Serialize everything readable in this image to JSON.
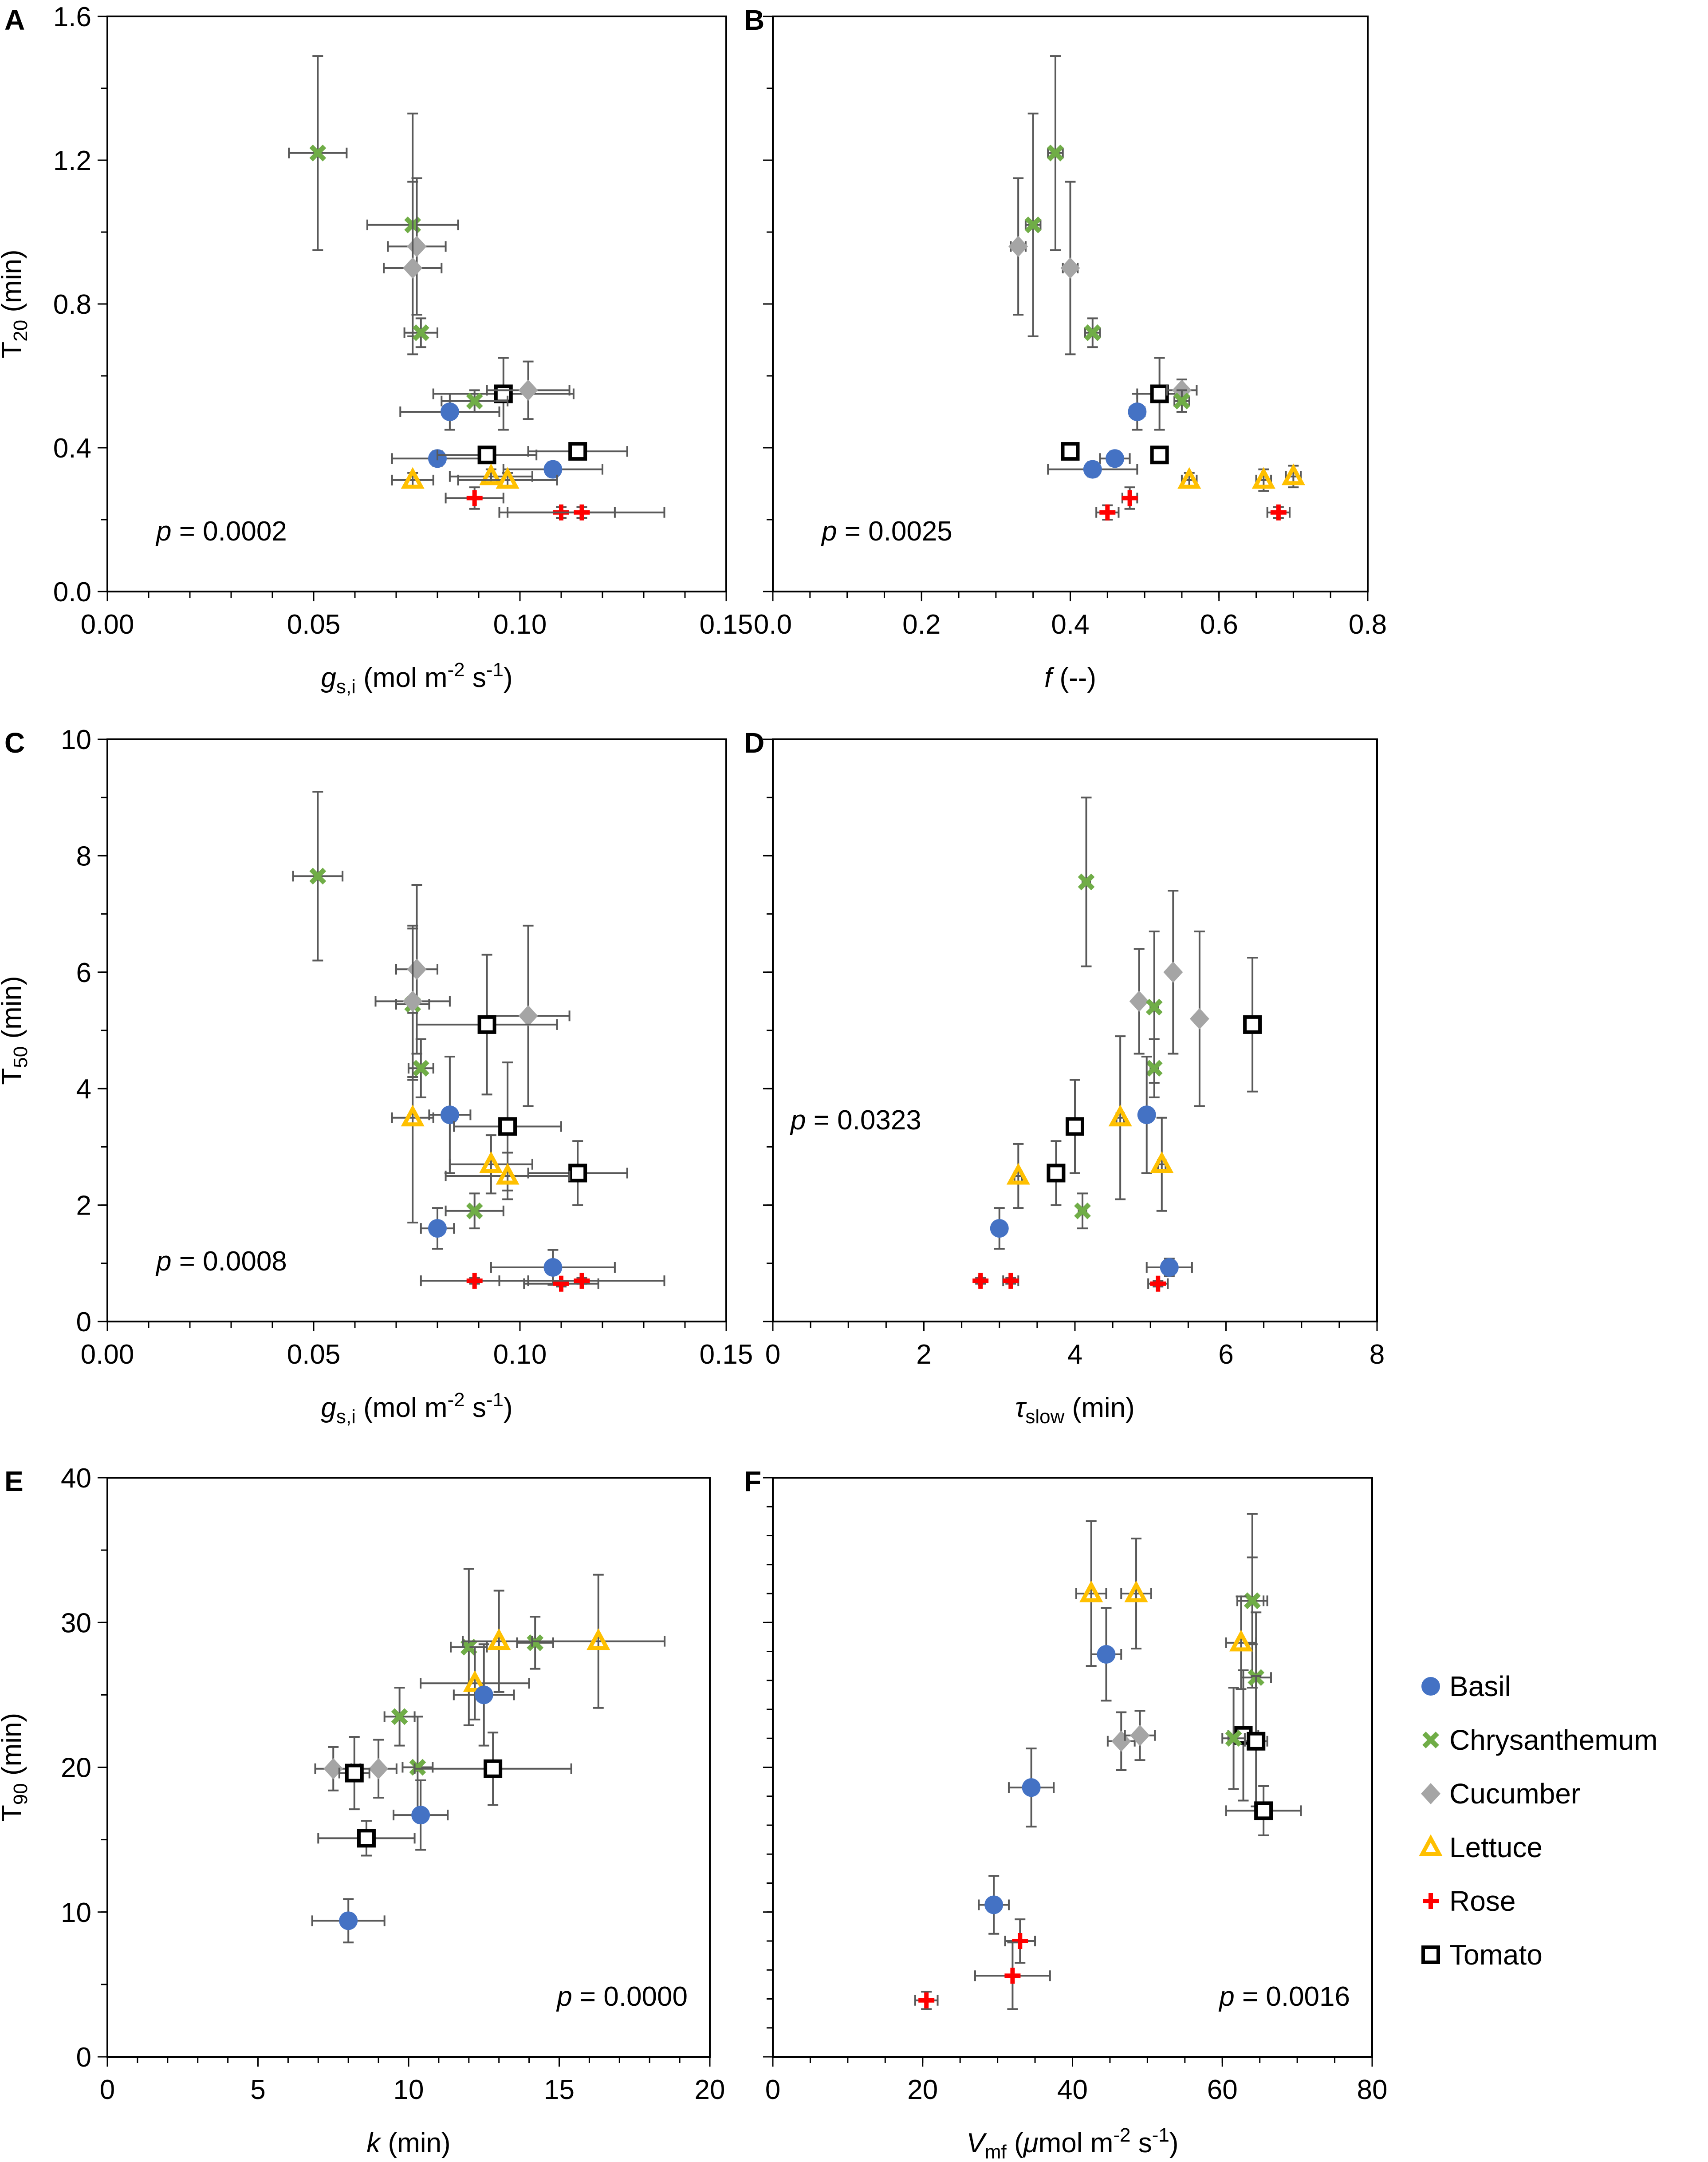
{
  "colors": {
    "Basil": "#4472C4",
    "Chrysanthemum": "#70AD47",
    "Cucumber": "#A5A5A5",
    "Lettuce": "#FFC000",
    "Rose": "#FF0000",
    "Tomato": "#000000",
    "errorbar": "#595959"
  },
  "legend": {
    "items": [
      {
        "name": "Basil",
        "marker": "circle"
      },
      {
        "name": "Chrysanthemum",
        "marker": "x"
      },
      {
        "name": "Cucumber",
        "marker": "diamond"
      },
      {
        "name": "Lettuce",
        "marker": "triangle"
      },
      {
        "name": "Rose",
        "marker": "plus"
      },
      {
        "name": "Tomato",
        "marker": "square"
      }
    ]
  },
  "chart_data": [
    {
      "id": "A",
      "type": "scatter",
      "letter": "A",
      "ylabel": "T",
      "ylabel_sub": "20",
      "ylabel_unit": " (min)",
      "xlabel": "g",
      "xlabel_sub": "s,i",
      "xlabel_unit": " (mol m",
      "xlabel_sup1": "-2",
      "xlabel_mid": " s",
      "xlabel_sup2": "-1",
      "xlabel_end": ")",
      "xlim": [
        0,
        0.15
      ],
      "ylim": [
        0,
        1.6
      ],
      "xticks": [
        "0.00",
        "0.05",
        "0.10",
        "0.15"
      ],
      "yticks": [
        "0.0",
        "0.4",
        "0.8",
        "1.2",
        "1.6"
      ],
      "show_xlabels": true,
      "show_ylabels": true,
      "xminor": 0.01,
      "yminor": 0.2,
      "pvalue": "p = 0.0002",
      "pvalue_pos": "bottom-left",
      "points": [
        {
          "s": "Chrysanthemum",
          "x": 0.051,
          "y": 1.22,
          "xe": 0.007,
          "ye": 0.27
        },
        {
          "s": "Chrysanthemum",
          "x": 0.074,
          "y": 1.02,
          "xe": 0.011,
          "ye": 0.31
        },
        {
          "s": "Cucumber",
          "x": 0.075,
          "y": 0.96,
          "xe": 0.007,
          "ye": 0.19
        },
        {
          "s": "Cucumber",
          "x": 0.074,
          "y": 0.9,
          "xe": 0.007,
          "ye": 0.24
        },
        {
          "s": "Chrysanthemum",
          "x": 0.076,
          "y": 0.72,
          "xe": 0.004,
          "ye": 0.04
        },
        {
          "s": "Tomato",
          "x": 0.096,
          "y": 0.55,
          "xe": 0.017,
          "ye": 0.1
        },
        {
          "s": "Cucumber",
          "x": 0.102,
          "y": 0.56,
          "xe": 0.01,
          "ye": 0.08
        },
        {
          "s": "Chrysanthemum",
          "x": 0.089,
          "y": 0.53,
          "xe": 0.008,
          "ye": 0.03
        },
        {
          "s": "Basil",
          "x": 0.083,
          "y": 0.5,
          "xe": 0.012,
          "ye": 0.05
        },
        {
          "s": "Basil",
          "x": 0.08,
          "y": 0.37,
          "xe": 0.011,
          "ye": 0.02
        },
        {
          "s": "Tomato",
          "x": 0.092,
          "y": 0.38,
          "xe": 0.012,
          "ye": 0.02
        },
        {
          "s": "Tomato",
          "x": 0.114,
          "y": 0.39,
          "xe": 0.012,
          "ye": 0.02
        },
        {
          "s": "Basil",
          "x": 0.108,
          "y": 0.34,
          "xe": 0.012,
          "ye": 0.02
        },
        {
          "s": "Lettuce",
          "x": 0.074,
          "y": 0.31,
          "xe": 0.005,
          "ye": 0.02
        },
        {
          "s": "Lettuce",
          "x": 0.093,
          "y": 0.32,
          "xe": 0.01,
          "ye": 0.02
        },
        {
          "s": "Lettuce",
          "x": 0.097,
          "y": 0.31,
          "xe": 0.012,
          "ye": 0.02
        },
        {
          "s": "Rose",
          "x": 0.089,
          "y": 0.26,
          "xe": 0.007,
          "ye": 0.03
        },
        {
          "s": "Rose",
          "x": 0.11,
          "y": 0.22,
          "xe": 0.013,
          "ye": 0.015
        },
        {
          "s": "Rose",
          "x": 0.115,
          "y": 0.22,
          "xe": 0.02,
          "ye": 0.015
        }
      ]
    },
    {
      "id": "B",
      "type": "scatter",
      "letter": "B",
      "xlabel": "f",
      "xlabel_unit": " (--)",
      "xlim": [
        0,
        0.8
      ],
      "ylim": [
        0,
        1.6
      ],
      "xticks": [
        "0.0",
        "0.2",
        "0.4",
        "0.6",
        "0.8"
      ],
      "yticks": [
        "0.0",
        "0.4",
        "0.8",
        "1.2",
        "1.6"
      ],
      "show_xlabels": true,
      "show_ylabels": false,
      "xminor": 0.05,
      "yminor": 0.2,
      "pvalue": "p = 0.0025",
      "pvalue_pos": "bottom-left",
      "points": [
        {
          "s": "Chrysanthemum",
          "x": 0.38,
          "y": 1.22,
          "xe": 0.01,
          "ye": 0.27
        },
        {
          "s": "Chrysanthemum",
          "x": 0.35,
          "y": 1.02,
          "xe": 0.01,
          "ye": 0.31
        },
        {
          "s": "Cucumber",
          "x": 0.33,
          "y": 0.96,
          "xe": 0.01,
          "ye": 0.19
        },
        {
          "s": "Cucumber",
          "x": 0.4,
          "y": 0.9,
          "xe": 0.01,
          "ye": 0.24
        },
        {
          "s": "Chrysanthemum",
          "x": 0.43,
          "y": 0.72,
          "xe": 0.01,
          "ye": 0.04
        },
        {
          "s": "Tomato",
          "x": 0.52,
          "y": 0.55,
          "xe": 0.03,
          "ye": 0.1
        },
        {
          "s": "Cucumber",
          "x": 0.55,
          "y": 0.56,
          "xe": 0.02,
          "ye": 0.03
        },
        {
          "s": "Chrysanthemum",
          "x": 0.55,
          "y": 0.53,
          "xe": 0.01,
          "ye": 0.03
        },
        {
          "s": "Basil",
          "x": 0.49,
          "y": 0.5,
          "xe": 0.01,
          "ye": 0.05
        },
        {
          "s": "Tomato",
          "x": 0.4,
          "y": 0.39,
          "xe": 0.01,
          "ye": 0.02
        },
        {
          "s": "Basil",
          "x": 0.46,
          "y": 0.37,
          "xe": 0.02,
          "ye": 0.02
        },
        {
          "s": "Tomato",
          "x": 0.52,
          "y": 0.38,
          "xe": 0.01,
          "ye": 0.02
        },
        {
          "s": "Basil",
          "x": 0.43,
          "y": 0.34,
          "xe": 0.06,
          "ye": 0.02
        },
        {
          "s": "Lettuce",
          "x": 0.56,
          "y": 0.31,
          "xe": 0.01,
          "ye": 0.02
        },
        {
          "s": "Lettuce",
          "x": 0.66,
          "y": 0.31,
          "xe": 0.01,
          "ye": 0.03
        },
        {
          "s": "Lettuce",
          "x": 0.7,
          "y": 0.32,
          "xe": 0.01,
          "ye": 0.03
        },
        {
          "s": "Rose",
          "x": 0.48,
          "y": 0.26,
          "xe": 0.01,
          "ye": 0.03
        },
        {
          "s": "Rose",
          "x": 0.45,
          "y": 0.22,
          "xe": 0.015,
          "ye": 0.02
        },
        {
          "s": "Rose",
          "x": 0.68,
          "y": 0.22,
          "xe": 0.015,
          "ye": 0.015
        }
      ]
    },
    {
      "id": "C",
      "type": "scatter",
      "letter": "C",
      "ylabel": "T",
      "ylabel_sub": "50",
      "ylabel_unit": " (min)",
      "xlabel": "g",
      "xlabel_sub": "s,i",
      "xlabel_unit": " (mol m",
      "xlabel_sup1": "-2",
      "xlabel_mid": " s",
      "xlabel_sup2": "-1",
      "xlabel_end": ")",
      "xlim": [
        0,
        0.15
      ],
      "ylim": [
        0,
        10
      ],
      "xticks": [
        "0.00",
        "0.05",
        "0.10",
        "0.15"
      ],
      "yticks": [
        "0",
        "2",
        "4",
        "6",
        "8",
        "10"
      ],
      "show_xlabels": true,
      "show_ylabels": true,
      "xminor": 0.01,
      "yminor": 1,
      "pvalue": "p = 0.0008",
      "pvalue_pos": "bottom-left",
      "points": [
        {
          "s": "Chrysanthemum",
          "x": 0.051,
          "y": 7.65,
          "xe": 0.006,
          "ye": 1.45
        },
        {
          "s": "Cucumber",
          "x": 0.075,
          "y": 6.05,
          "xe": 0.005,
          "ye": 1.45
        },
        {
          "s": "Chrysanthemum",
          "x": 0.074,
          "y": 5.45,
          "xe": 0.004,
          "ye": 1.3
        },
        {
          "s": "Cucumber",
          "x": 0.074,
          "y": 5.5,
          "xe": 0.009,
          "ye": 1.3
        },
        {
          "s": "Cucumber",
          "x": 0.102,
          "y": 5.25,
          "xe": 0.01,
          "ye": 1.55
        },
        {
          "s": "Tomato",
          "x": 0.092,
          "y": 5.1,
          "xe": 0.017,
          "ye": 1.2
        },
        {
          "s": "Chrysanthemum",
          "x": 0.076,
          "y": 4.35,
          "xe": 0.003,
          "ye": 0.5
        },
        {
          "s": "Basil",
          "x": 0.083,
          "y": 3.55,
          "xe": 0.005,
          "ye": 1.0
        },
        {
          "s": "Lettuce",
          "x": 0.074,
          "y": 3.5,
          "xe": 0.005,
          "ye": 1.8
        },
        {
          "s": "Tomato",
          "x": 0.097,
          "y": 3.35,
          "xe": 0.013,
          "ye": 1.1
        },
        {
          "s": "Lettuce",
          "x": 0.093,
          "y": 2.7,
          "xe": 0.01,
          "ye": 0.5
        },
        {
          "s": "Tomato",
          "x": 0.114,
          "y": 2.55,
          "xe": 0.012,
          "ye": 0.55
        },
        {
          "s": "Lettuce",
          "x": 0.097,
          "y": 2.5,
          "xe": 0.015,
          "ye": 0.4
        },
        {
          "s": "Chrysanthemum",
          "x": 0.089,
          "y": 1.9,
          "xe": 0.007,
          "ye": 0.3
        },
        {
          "s": "Basil",
          "x": 0.08,
          "y": 1.6,
          "xe": 0.004,
          "ye": 0.35
        },
        {
          "s": "Basil",
          "x": 0.108,
          "y": 0.93,
          "xe": 0.015,
          "ye": 0.3
        },
        {
          "s": "Rose",
          "x": 0.089,
          "y": 0.7,
          "xe": 0.013,
          "ye": 0.05
        },
        {
          "s": "Rose",
          "x": 0.11,
          "y": 0.65,
          "xe": 0.009,
          "ye": 0.05
        },
        {
          "s": "Rose",
          "x": 0.115,
          "y": 0.7,
          "xe": 0.02,
          "ye": 0.05
        }
      ]
    },
    {
      "id": "D",
      "type": "scatter",
      "letter": "D",
      "xlabel": "τ",
      "xlabel_sub": "slow",
      "xlabel_unit": " (min)",
      "xlim": [
        0,
        8
      ],
      "ylim": [
        0,
        10
      ],
      "xticks": [
        "0",
        "2",
        "4",
        "6",
        "8"
      ],
      "yticks": [
        "0",
        "2",
        "4",
        "6",
        "8",
        "10"
      ],
      "show_xlabels": true,
      "show_ylabels": false,
      "xminor": 0.5,
      "yminor": 1,
      "pvalue": "p = 0.0323",
      "pvalue_pos": "mid-left",
      "points": [
        {
          "s": "Chrysanthemum",
          "x": 4.15,
          "y": 7.55,
          "xe": 0.05,
          "ye": 1.45
        },
        {
          "s": "Tomato",
          "x": 6.35,
          "y": 5.1,
          "xe": 0.05,
          "ye": 1.15
        },
        {
          "s": "Cucumber",
          "x": 5.3,
          "y": 6.0,
          "xe": 0.05,
          "ye": 1.4
        },
        {
          "s": "Cucumber",
          "x": 4.85,
          "y": 5.5,
          "xe": 0.05,
          "ye": 0.9
        },
        {
          "s": "Chrysanthemum",
          "x": 5.05,
          "y": 5.4,
          "xe": 0.05,
          "ye": 1.3
        },
        {
          "s": "Cucumber",
          "x": 5.65,
          "y": 5.2,
          "xe": 0.05,
          "ye": 1.5
        },
        {
          "s": "Chrysanthemum",
          "x": 5.05,
          "y": 4.35,
          "xe": 0.05,
          "ye": 0.5
        },
        {
          "s": "Basil",
          "x": 4.95,
          "y": 3.55,
          "xe": 0.05,
          "ye": 1.0
        },
        {
          "s": "Lettuce",
          "x": 4.6,
          "y": 3.5,
          "xe": 0.05,
          "ye": 1.4
        },
        {
          "s": "Tomato",
          "x": 4.0,
          "y": 3.35,
          "xe": 0.05,
          "ye": 0.8
        },
        {
          "s": "Lettuce",
          "x": 5.15,
          "y": 2.7,
          "xe": 0.05,
          "ye": 0.8
        },
        {
          "s": "Tomato",
          "x": 3.75,
          "y": 2.55,
          "xe": 0.05,
          "ye": 0.55
        },
        {
          "s": "Lettuce",
          "x": 3.25,
          "y": 2.5,
          "xe": 0.05,
          "ye": 0.55
        },
        {
          "s": "Chrysanthemum",
          "x": 4.1,
          "y": 1.9,
          "xe": 0.05,
          "ye": 0.3
        },
        {
          "s": "Basil",
          "x": 3.0,
          "y": 1.6,
          "xe": 0.05,
          "ye": 0.35
        },
        {
          "s": "Basil",
          "x": 5.25,
          "y": 0.93,
          "xe": 0.3,
          "ye": 0.15
        },
        {
          "s": "Rose",
          "x": 2.75,
          "y": 0.7,
          "xe": 0.02,
          "ye": 0.05
        },
        {
          "s": "Rose",
          "x": 3.15,
          "y": 0.7,
          "xe": 0.1,
          "ye": 0.05
        },
        {
          "s": "Rose",
          "x": 5.1,
          "y": 0.65,
          "xe": 0.13,
          "ye": 0.05
        }
      ]
    },
    {
      "id": "E",
      "type": "scatter",
      "letter": "E",
      "ylabel": "T",
      "ylabel_sub": "90",
      "ylabel_unit": " (min)",
      "xlabel": "k",
      "xlabel_unit": " (min)",
      "xlim": [
        0,
        20
      ],
      "ylim": [
        0,
        40
      ],
      "xticks": [
        "0",
        "5",
        "10",
        "15",
        "20"
      ],
      "yticks": [
        "0",
        "10",
        "20",
        "30",
        "40"
      ],
      "show_xlabels": true,
      "show_ylabels": true,
      "xminor": 1,
      "yminor": 5,
      "pvalue": "p = 0.0000",
      "pvalue_pos": "bottom-right",
      "points": [
        {
          "s": "Chrysanthemum",
          "x": 12.0,
          "y": 28.3,
          "xe": 0.6,
          "ye": 5.4
        },
        {
          "s": "Lettuce",
          "x": 13.0,
          "y": 28.7,
          "xe": 1.2,
          "ye": 3.5
        },
        {
          "s": "Chrysanthemum",
          "x": 14.2,
          "y": 28.6,
          "xe": 0.6,
          "ye": 1.8
        },
        {
          "s": "Lettuce",
          "x": 16.3,
          "y": 28.7,
          "xe": 2.2,
          "ye": 4.6
        },
        {
          "s": "Lettuce",
          "x": 12.2,
          "y": 25.8,
          "xe": 1.8,
          "ye": 2.5
        },
        {
          "s": "Basil",
          "x": 12.5,
          "y": 25.0,
          "xe": 1.0,
          "ye": 3.5
        },
        {
          "s": "Chrysanthemum",
          "x": 9.7,
          "y": 23.5,
          "xe": 0.5,
          "ye": 2.0
        },
        {
          "s": "Cucumber",
          "x": 7.5,
          "y": 19.9,
          "xe": 0.6,
          "ye": 1.5
        },
        {
          "s": "Cucumber",
          "x": 9.0,
          "y": 19.9,
          "xe": 0.6,
          "ye": 2.0
        },
        {
          "s": "Tomato",
          "x": 8.2,
          "y": 19.6,
          "xe": 0.5,
          "ye": 2.5
        },
        {
          "s": "Chrysanthemum",
          "x": 10.3,
          "y": 20.0,
          "xe": 0.5,
          "ye": 3.5
        },
        {
          "s": "Tomato",
          "x": 12.8,
          "y": 19.9,
          "xe": 2.6,
          "ye": 2.5
        },
        {
          "s": "Basil",
          "x": 10.4,
          "y": 16.7,
          "xe": 0.9,
          "ye": 2.4
        },
        {
          "s": "Tomato",
          "x": 8.6,
          "y": 15.1,
          "xe": 1.6,
          "ye": 1.2
        },
        {
          "s": "Basil",
          "x": 8.0,
          "y": 9.4,
          "xe": 1.2,
          "ye": 1.5
        }
      ]
    },
    {
      "id": "F",
      "type": "scatter",
      "letter": "F",
      "xlabel": "V",
      "xlabel_sub": "mf",
      "xlabel_unit": " (",
      "xlabel_mu": "μ",
      "xlabel_unit2": "mol m",
      "xlabel_sup1": "-2",
      "xlabel_mid": " s",
      "xlabel_sup2": "-1",
      "xlabel_end": ")",
      "xlim": [
        0,
        80
      ],
      "ylim": [
        0,
        40
      ],
      "xticks": [
        "0",
        "20",
        "40",
        "60",
        "80"
      ],
      "yticks": [
        "0",
        "10",
        "20",
        "30",
        "40"
      ],
      "show_xlabels": true,
      "show_ylabels": false,
      "xminor": 5,
      "yminor": 2,
      "pvalue": "p = 0.0016",
      "pvalue_pos": "bottom-right",
      "points": [
        {
          "s": "Lettuce",
          "x": 42.5,
          "y": 32.0,
          "xe": 2.0,
          "ye": 5.0
        },
        {
          "s": "Lettuce",
          "x": 48.5,
          "y": 32.0,
          "xe": 2.0,
          "ye": 3.8
        },
        {
          "s": "Chrysanthemum",
          "x": 64.0,
          "y": 31.5,
          "xe": 2.0,
          "ye": 6.0
        },
        {
          "s": "Chrysanthemum",
          "x": 64.0,
          "y": 31.5,
          "xe": 1.5,
          "ye": 3.0
        },
        {
          "s": "Lettuce",
          "x": 62.5,
          "y": 28.6,
          "xe": 2.0,
          "ye": 3.2
        },
        {
          "s": "Basil",
          "x": 44.5,
          "y": 27.8,
          "xe": 2.0,
          "ye": 3.2
        },
        {
          "s": "Chrysanthemum",
          "x": 64.5,
          "y": 26.2,
          "xe": 2.0,
          "ye": 4.5
        },
        {
          "s": "Cucumber",
          "x": 46.5,
          "y": 21.8,
          "xe": 1.8,
          "ye": 2.0
        },
        {
          "s": "Cucumber",
          "x": 49.0,
          "y": 22.2,
          "xe": 2.0,
          "ye": 1.7
        },
        {
          "s": "Tomato",
          "x": 62.8,
          "y": 22.2,
          "xe": 2.0,
          "ye": 4.5
        },
        {
          "s": "Chrysanthemum",
          "x": 61.5,
          "y": 22.0,
          "xe": 1.5,
          "ye": 3.5
        },
        {
          "s": "Tomato",
          "x": 64.5,
          "y": 21.8,
          "xe": 1.5,
          "ye": 4.5
        },
        {
          "s": "Basil",
          "x": 34.5,
          "y": 18.6,
          "xe": 3.0,
          "ye": 2.7
        },
        {
          "s": "Tomato",
          "x": 65.5,
          "y": 17.0,
          "xe": 5.0,
          "ye": 1.7
        },
        {
          "s": "Basil",
          "x": 29.5,
          "y": 10.5,
          "xe": 2.0,
          "ye": 2.0
        },
        {
          "s": "Rose",
          "x": 33.0,
          "y": 8.0,
          "xe": 2.0,
          "ye": 1.5
        },
        {
          "s": "Rose",
          "x": 32.0,
          "y": 5.6,
          "xe": 5.0,
          "ye": 2.3
        },
        {
          "s": "Rose",
          "x": 20.5,
          "y": 3.9,
          "xe": 1.5,
          "ye": 0.6
        }
      ]
    }
  ]
}
